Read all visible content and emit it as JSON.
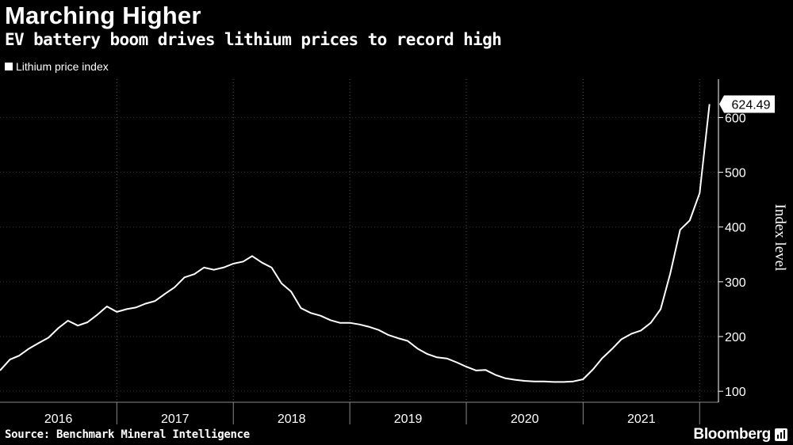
{
  "header": {
    "title": "Marching Higher",
    "subtitle": "EV battery boom drives lithium prices to record high"
  },
  "legend": {
    "label": "Lithium price index"
  },
  "footer": {
    "source": "Source: Benchmark Mineral Intelligence",
    "brand": "Bloomberg"
  },
  "colors": {
    "background": "#000000",
    "line": "#ffffff",
    "grid": "#555555"
  },
  "chart_data": {
    "type": "line",
    "title": "Marching Higher",
    "subtitle": "EV battery boom drives lithium prices to record high",
    "ylabel": "Index level",
    "xlabel": "",
    "ylim": [
      80,
      670
    ],
    "yticks": [
      100,
      200,
      300,
      400,
      500,
      600
    ],
    "xlim": [
      "2016-01-01",
      "2022-03-01"
    ],
    "year_labels": [
      "2016",
      "2017",
      "2018",
      "2019",
      "2020",
      "2021"
    ],
    "legend_position": "top-left",
    "grid": "vertical dotted at year boundaries",
    "last_value_label": "624.49",
    "series": [
      {
        "name": "Lithium price index",
        "points": [
          [
            "2016-01-01",
            138
          ],
          [
            "2016-02-01",
            158
          ],
          [
            "2016-03-01",
            165
          ],
          [
            "2016-04-01",
            178
          ],
          [
            "2016-05-01",
            188
          ],
          [
            "2016-06-01",
            198
          ],
          [
            "2016-07-01",
            215
          ],
          [
            "2016-08-01",
            229
          ],
          [
            "2016-09-01",
            220
          ],
          [
            "2016-10-01",
            226
          ],
          [
            "2016-11-01",
            240
          ],
          [
            "2016-12-01",
            255
          ],
          [
            "2017-01-01",
            245
          ],
          [
            "2017-02-01",
            250
          ],
          [
            "2017-03-01",
            253
          ],
          [
            "2017-04-01",
            260
          ],
          [
            "2017-05-01",
            265
          ],
          [
            "2017-06-01",
            278
          ],
          [
            "2017-07-01",
            290
          ],
          [
            "2017-08-01",
            308
          ],
          [
            "2017-09-01",
            314
          ],
          [
            "2017-10-01",
            326
          ],
          [
            "2017-11-01",
            322
          ],
          [
            "2017-12-01",
            326
          ],
          [
            "2018-01-01",
            333
          ],
          [
            "2018-02-01",
            337
          ],
          [
            "2018-03-01",
            347
          ],
          [
            "2018-04-01",
            335
          ],
          [
            "2018-05-01",
            326
          ],
          [
            "2018-06-01",
            297
          ],
          [
            "2018-07-01",
            282
          ],
          [
            "2018-08-01",
            252
          ],
          [
            "2018-09-01",
            243
          ],
          [
            "2018-10-01",
            238
          ],
          [
            "2018-11-01",
            230
          ],
          [
            "2018-12-01",
            225
          ],
          [
            "2019-01-01",
            225
          ],
          [
            "2019-02-01",
            222
          ],
          [
            "2019-03-01",
            218
          ],
          [
            "2019-04-01",
            212
          ],
          [
            "2019-05-01",
            203
          ],
          [
            "2019-06-01",
            197
          ],
          [
            "2019-07-01",
            192
          ],
          [
            "2019-08-01",
            178
          ],
          [
            "2019-09-01",
            168
          ],
          [
            "2019-10-01",
            162
          ],
          [
            "2019-11-01",
            160
          ],
          [
            "2019-12-01",
            153
          ],
          [
            "2020-01-01",
            145
          ],
          [
            "2020-02-01",
            138
          ],
          [
            "2020-03-01",
            139
          ],
          [
            "2020-04-01",
            130
          ],
          [
            "2020-05-01",
            124
          ],
          [
            "2020-06-01",
            121
          ],
          [
            "2020-07-01",
            119
          ],
          [
            "2020-08-01",
            118
          ],
          [
            "2020-09-01",
            118
          ],
          [
            "2020-10-01",
            117
          ],
          [
            "2020-11-01",
            117
          ],
          [
            "2020-12-01",
            118
          ],
          [
            "2021-01-01",
            122
          ],
          [
            "2021-02-01",
            140
          ],
          [
            "2021-03-01",
            160
          ],
          [
            "2021-04-01",
            177
          ],
          [
            "2021-05-01",
            195
          ],
          [
            "2021-06-01",
            205
          ],
          [
            "2021-07-01",
            211
          ],
          [
            "2021-08-01",
            225
          ],
          [
            "2021-09-01",
            250
          ],
          [
            "2021-10-01",
            315
          ],
          [
            "2021-11-01",
            395
          ],
          [
            "2021-12-01",
            412
          ],
          [
            "2022-01-01",
            462
          ],
          [
            "2022-02-01",
            624.49
          ]
        ]
      }
    ]
  }
}
